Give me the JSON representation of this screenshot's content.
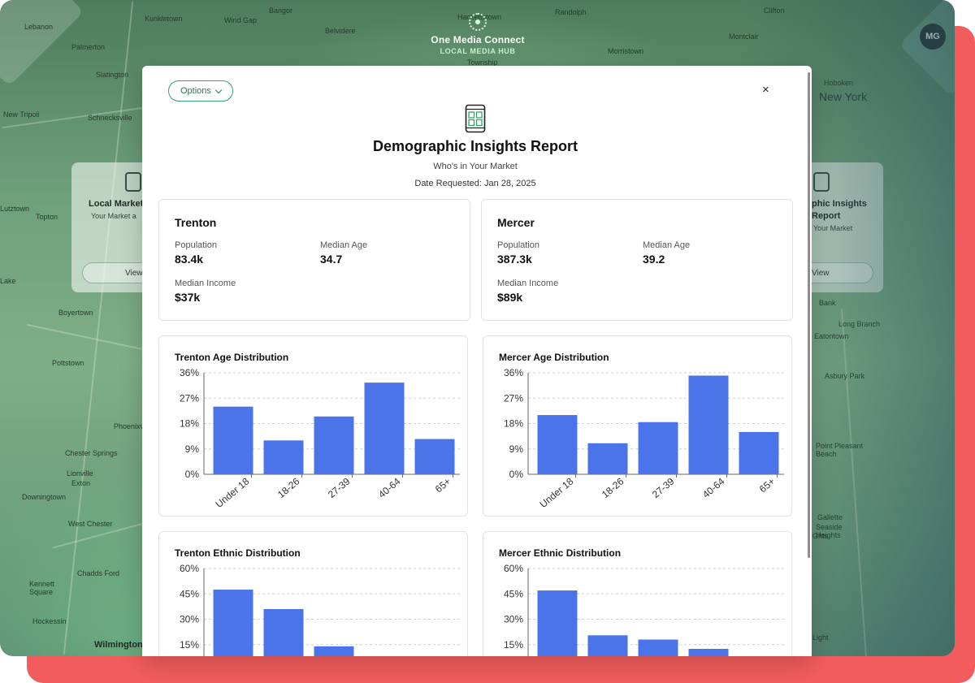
{
  "header": {
    "brand_name": "One Media Connect",
    "brand_subtitle": "LOCAL MEDIA HUB",
    "avatar_initials": "MG"
  },
  "map_labels": [
    "Lebanon",
    "Kunkletown",
    "Wind Gap",
    "Bangor",
    "Hackettstown",
    "Randolph",
    "Clifton",
    "Palmerton",
    "Belvidere",
    "Slatington",
    "Morristown",
    "Montclair",
    "Hoboken",
    "New York",
    "New Tripoli",
    "Schnecksville",
    "Township",
    "Lutztown",
    "Topton",
    "Lake",
    "Boyertown",
    "Bank",
    "Long Branch",
    "Eatontown",
    "Pottstown",
    "Asbury Park",
    "Phoenixville",
    "Chester Springs",
    "Lionville",
    "Exton",
    "Downingtown",
    "West Chester",
    "Point Pleasant Beach",
    "Kennett Square",
    "Chadds Ford",
    "Hockessin",
    "Wilmington",
    "Ghts",
    "Gallette",
    "Seaside Heights",
    "Light"
  ],
  "background_cards": {
    "left": {
      "title": "Local Market",
      "subtitle": "Your Market a",
      "button": "View"
    },
    "right": {
      "title": "phic Insights",
      "title2": "Report",
      "subtitle": "Your Market",
      "button": "View"
    }
  },
  "modal": {
    "options_label": "Options",
    "close_label": "×",
    "title": "Demographic Insights Report",
    "subtitle": "Who's in Your Market",
    "date_label": "Date Requested:",
    "date_value": "Jan 28, 2025"
  },
  "stats": {
    "trenton": {
      "city": "Trenton",
      "population_label": "Population",
      "population": "83.4k",
      "median_age_label": "Median Age",
      "median_age": "34.7",
      "median_income_label": "Median Income",
      "median_income": "$37k"
    },
    "mercer": {
      "city": "Mercer",
      "population_label": "Population",
      "population": "387.3k",
      "median_age_label": "Median Age",
      "median_age": "39.2",
      "median_income_label": "Median Income",
      "median_income": "$89k"
    }
  },
  "colors": {
    "bar": "#4a74e8",
    "accent": "#33a36b",
    "red_frame": "#f25c5c"
  },
  "chart_data": [
    {
      "id": "trenton-age",
      "type": "bar",
      "title": "Trenton Age Distribution",
      "categories": [
        "Under 18",
        "18-26",
        "27-39",
        "40-64",
        "65+"
      ],
      "values": [
        24,
        12,
        20.5,
        32.5,
        12.5
      ],
      "yticks": [
        "0%",
        "9%",
        "18%",
        "27%",
        "36%"
      ],
      "ylim": [
        0,
        36
      ],
      "grid": true
    },
    {
      "id": "mercer-age",
      "type": "bar",
      "title": "Mercer Age Distribution",
      "categories": [
        "Under 18",
        "18-26",
        "27-39",
        "40-64",
        "65+"
      ],
      "values": [
        21,
        11,
        18.5,
        35,
        15
      ],
      "yticks": [
        "0%",
        "9%",
        "18%",
        "27%",
        "36%"
      ],
      "ylim": [
        0,
        36
      ],
      "grid": true
    },
    {
      "id": "trenton-ethnic",
      "type": "bar",
      "title": "Trenton Ethnic Distribution",
      "categories": [
        "",
        "",
        "",
        "",
        ""
      ],
      "values": [
        47.5,
        36,
        14,
        0,
        0
      ],
      "yticks": [
        "15%",
        "30%",
        "45%",
        "60%"
      ],
      "ylim": [
        0,
        60
      ],
      "grid": true
    },
    {
      "id": "mercer-ethnic",
      "type": "bar",
      "title": "Mercer Ethnic Distribution",
      "categories": [
        "",
        "",
        "",
        "",
        ""
      ],
      "values": [
        47,
        20.5,
        18,
        12.5,
        0
      ],
      "yticks": [
        "15%",
        "30%",
        "45%",
        "60%"
      ],
      "ylim": [
        0,
        60
      ],
      "grid": true
    }
  ]
}
